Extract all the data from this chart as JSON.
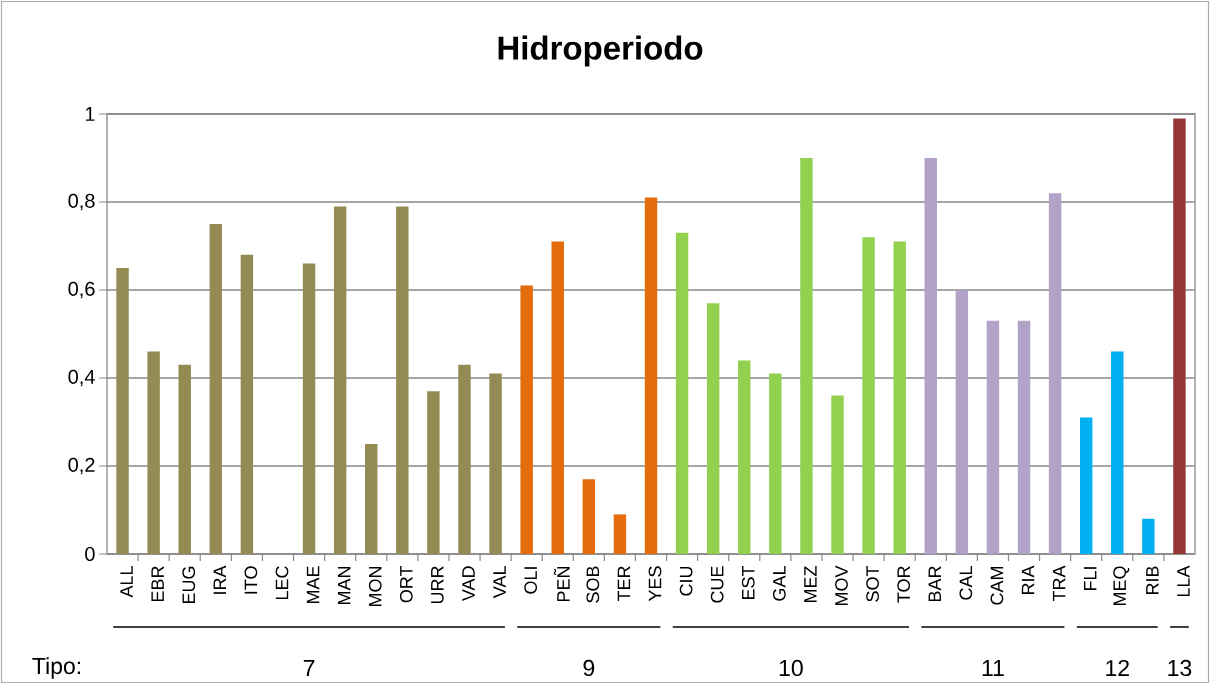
{
  "chart_data": {
    "type": "bar",
    "title": "Hidroperiodo",
    "categories": [
      "ALL",
      "EBR",
      "EUG",
      "IRA",
      "ITO",
      "LEC",
      "MAE",
      "MAN",
      "MON",
      "ORT",
      "URR",
      "VAD",
      "VAL",
      "OLI",
      "PEÑ",
      "SOB",
      "TER",
      "YES",
      "CIU",
      "CUE",
      "EST",
      "GAL",
      "MEZ",
      "MOV",
      "SOT",
      "TOR",
      "BAR",
      "CAL",
      "CAM",
      "RIA",
      "TRA",
      "FLI",
      "MEQ",
      "RIB",
      "LLA"
    ],
    "values": [
      0.65,
      0.46,
      0.43,
      0.75,
      0.68,
      0,
      0.66,
      0.79,
      0.25,
      0.79,
      0.37,
      0.43,
      0.41,
      0.61,
      0.71,
      0.17,
      0.09,
      0.81,
      0.73,
      0.57,
      0.44,
      0.41,
      0.9,
      0.36,
      0.72,
      0.71,
      0.9,
      0.6,
      0.53,
      0.53,
      0.82,
      0.31,
      0.46,
      0.08,
      0.99
    ],
    "colors": [
      "#948a54",
      "#948a54",
      "#948a54",
      "#948a54",
      "#948a54",
      "#948a54",
      "#948a54",
      "#948a54",
      "#948a54",
      "#948a54",
      "#948a54",
      "#948a54",
      "#948a54",
      "#e46c0a",
      "#e46c0a",
      "#e46c0a",
      "#e46c0a",
      "#e46c0a",
      "#92d050",
      "#92d050",
      "#92d050",
      "#92d050",
      "#92d050",
      "#92d050",
      "#92d050",
      "#92d050",
      "#b3a2c7",
      "#b3a2c7",
      "#b3a2c7",
      "#b3a2c7",
      "#b3a2c7",
      "#00b0f0",
      "#00b0f0",
      "#00b0f0",
      "#953735"
    ],
    "ylim": [
      0,
      1
    ],
    "yticks": [
      0,
      {
        "value": 0.2,
        "label": "0,2"
      },
      {
        "value": 0.4,
        "label": "0,4"
      },
      {
        "value": 0.6,
        "label": "0,6"
      },
      {
        "value": 0.8,
        "label": "0,8"
      },
      1
    ],
    "grid": "y",
    "annotations": [
      "Tipo:",
      "7",
      "9",
      "10",
      "11",
      "12",
      "13"
    ]
  }
}
